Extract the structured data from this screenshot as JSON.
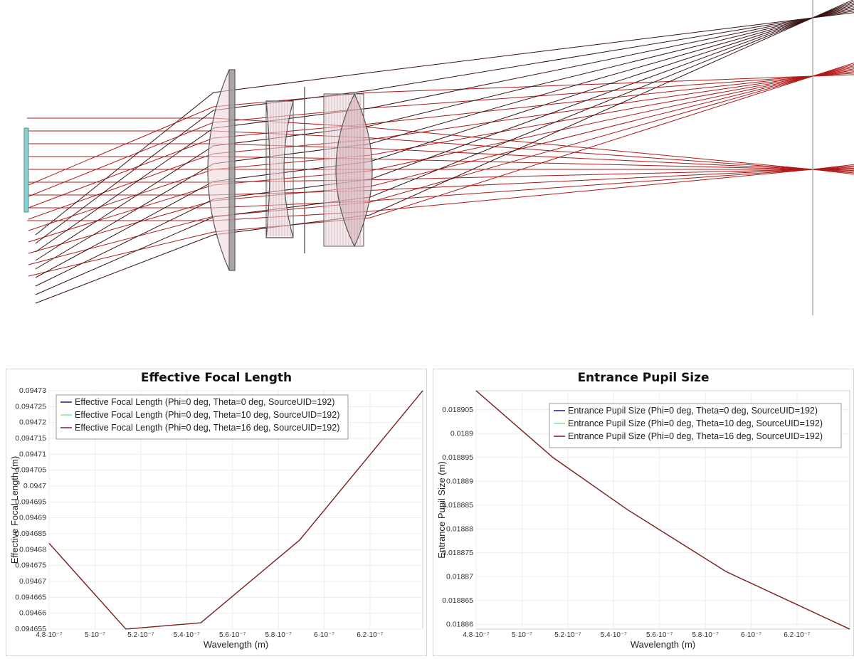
{
  "layout_view": {
    "colors": {
      "ray": "#b01818",
      "ray_dark": "#3a1414",
      "lens_fill": "#f0d8dc",
      "lens_edge": "#555555",
      "source": "#8ecfcf",
      "image_plane": "#888888"
    }
  },
  "chart_data": [
    {
      "type": "line",
      "title": "Effective Focal Length",
      "xlabel": "Wavelength (m)",
      "ylabel": "Effective Focal Length (m)",
      "xlim": [
        4.8e-07,
        6.43e-07
      ],
      "ylim": [
        0.094655,
        0.09473
      ],
      "x_ticks": [
        4.8e-07,
        5e-07,
        5.2e-07,
        5.4e-07,
        5.6e-07,
        5.8e-07,
        6e-07,
        6.2e-07
      ],
      "x_tick_labels": [
        "4.8·10⁻⁷",
        "5·10⁻⁷",
        "5.2·10⁻⁷",
        "5.4·10⁻⁷",
        "5.6·10⁻⁷",
        "5.8·10⁻⁷",
        "6·10⁻⁷",
        "6.2·10⁻⁷"
      ],
      "y_ticks": [
        0.094655,
        0.09466,
        0.094665,
        0.09467,
        0.094675,
        0.09468,
        0.094685,
        0.09469,
        0.094695,
        0.0947,
        0.094705,
        0.09471,
        0.094715,
        0.09472,
        0.094725,
        0.09473
      ],
      "y_tick_labels": [
        "0.094655",
        "0.09466",
        "0.094665",
        "0.09467",
        "0.094675",
        "0.09468",
        "0.094685",
        "0.09469",
        "0.094695",
        "0.0947",
        "0.094705",
        "0.09471",
        "0.094715",
        "0.09472",
        "0.094725",
        "0.09473"
      ],
      "grid": true,
      "legend_position": "top-left",
      "x": [
        4.8e-07,
        5.135e-07,
        5.462e-07,
        5.893e-07,
        6.43e-07
      ],
      "series": [
        {
          "name": "Effective Focal Length (Phi=0 deg, Theta=0 deg, SourceUID=192)",
          "color": "#1f1f7a",
          "values": [
            0.094682,
            0.094655,
            0.094657,
            0.094683,
            0.09473
          ]
        },
        {
          "name": "Effective Focal Length (Phi=0 deg, Theta=10 deg, SourceUID=192)",
          "color": "#7fe89a",
          "values": [
            0.094682,
            0.094655,
            0.094657,
            0.094683,
            0.09473
          ]
        },
        {
          "name": "Effective Focal Length (Phi=0 deg, Theta=16 deg, SourceUID=192)",
          "color": "#8b1a1a",
          "values": [
            0.094682,
            0.094655,
            0.094657,
            0.094683,
            0.09473
          ]
        }
      ]
    },
    {
      "type": "line",
      "title": "Entrance Pupil Size",
      "xlabel": "Wavelength (m)",
      "ylabel": "Entrance Pupil Size (m)",
      "xlim": [
        4.8e-07,
        6.43e-07
      ],
      "ylim": [
        0.018859,
        0.018909
      ],
      "x_ticks": [
        4.8e-07,
        5e-07,
        5.2e-07,
        5.4e-07,
        5.6e-07,
        5.8e-07,
        6e-07,
        6.2e-07
      ],
      "x_tick_labels": [
        "4.8·10⁻⁷",
        "5·10⁻⁷",
        "5.2·10⁻⁷",
        "5.4·10⁻⁷",
        "5.6·10⁻⁷",
        "5.8·10⁻⁷",
        "6·10⁻⁷",
        "6.2·10⁻⁷"
      ],
      "y_ticks": [
        0.01886,
        0.018865,
        0.01887,
        0.018875,
        0.01888,
        0.018885,
        0.01889,
        0.018895,
        0.0189,
        0.018905
      ],
      "y_tick_labels": [
        "0.01886",
        "0.018865",
        "0.01887",
        "0.018875",
        "0.01888",
        "0.018885",
        "0.01889",
        "0.018895",
        "0.0189",
        "0.018905"
      ],
      "grid": true,
      "legend_position": "top-right",
      "x": [
        4.8e-07,
        5.135e-07,
        5.462e-07,
        5.893e-07,
        6.43e-07
      ],
      "series": [
        {
          "name": "Entrance Pupil Size (Phi=0 deg, Theta=0 deg, SourceUID=192)",
          "color": "#1f1f7a",
          "values": [
            0.018909,
            0.018895,
            0.018884,
            0.018871,
            0.018859
          ]
        },
        {
          "name": "Entrance Pupil Size (Phi=0 deg, Theta=10 deg, SourceUID=192)",
          "color": "#7fe89a",
          "values": [
            0.018909,
            0.018895,
            0.018884,
            0.018871,
            0.018859
          ]
        },
        {
          "name": "Entrance Pupil Size (Phi=0 deg, Theta=16 deg, SourceUID=192)",
          "color": "#8b1a1a",
          "values": [
            0.018909,
            0.018895,
            0.018884,
            0.018871,
            0.018859
          ]
        }
      ]
    }
  ]
}
